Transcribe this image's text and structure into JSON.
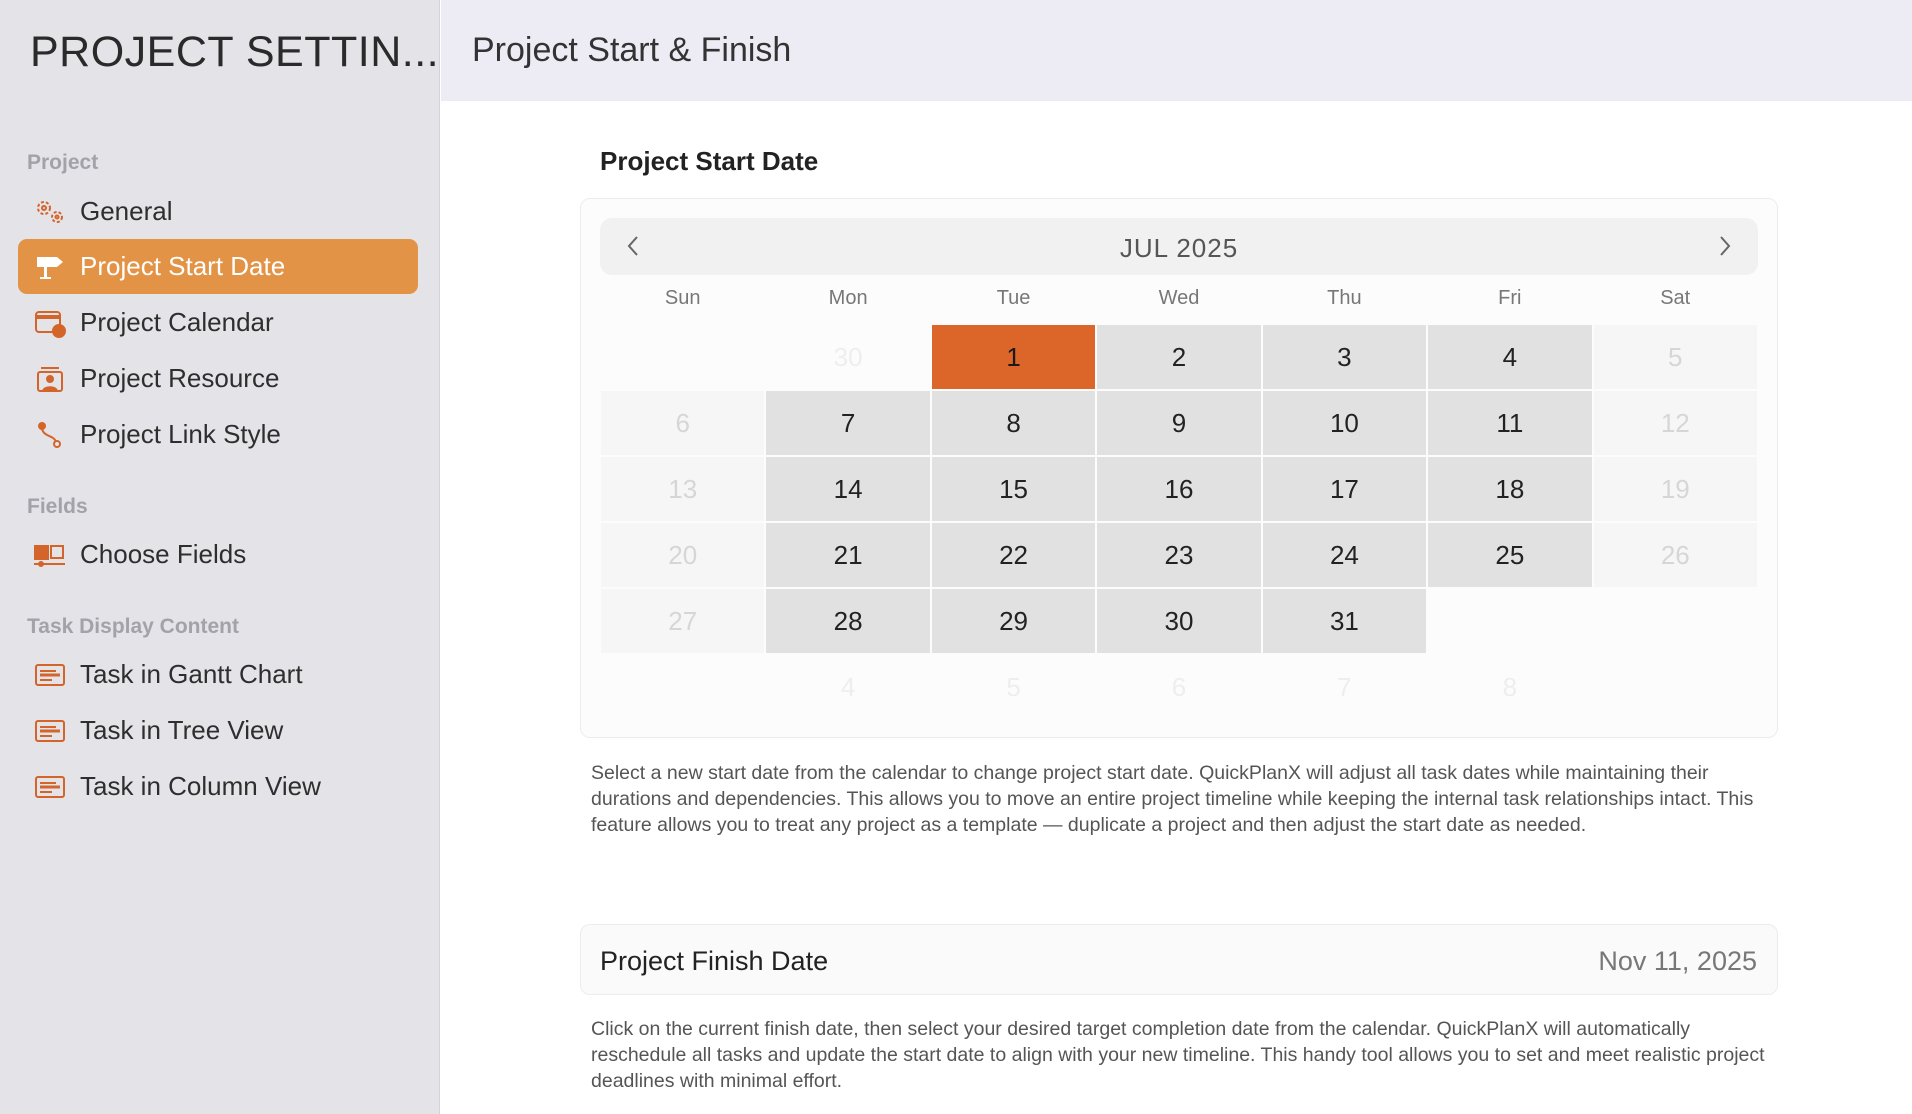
{
  "sidebar": {
    "title": "PROJECT SETTIN...",
    "sections": {
      "project": "Project",
      "fields": "Fields",
      "task_display": "Task Display Content"
    },
    "items": [
      {
        "label": "General",
        "icon": "gears-icon"
      },
      {
        "label": "Project Start Date",
        "icon": "signpost-icon",
        "active": true
      },
      {
        "label": "Project Calendar",
        "icon": "calendar-clock-icon"
      },
      {
        "label": "Project Resource",
        "icon": "resource-person-icon"
      },
      {
        "label": "Project Link Style",
        "icon": "link-path-icon"
      },
      {
        "label": "Choose Fields",
        "icon": "fields-icon"
      },
      {
        "label": "Task in Gantt Chart",
        "icon": "task-card-icon"
      },
      {
        "label": "Task in Tree View",
        "icon": "task-card-icon"
      },
      {
        "label": "Task in Column View",
        "icon": "task-card-icon"
      }
    ]
  },
  "header": {
    "title": "Project Start & Finish"
  },
  "start": {
    "heading": "Project Start Date",
    "calendar": {
      "month": "JUL 2025",
      "weekdays": [
        "Sun",
        "Mon",
        "Tue",
        "Wed",
        "Thu",
        "Fri",
        "Sat"
      ],
      "selected": "1",
      "weeks": [
        [
          [
            "",
            "outside"
          ],
          [
            "30",
            "outside"
          ],
          [
            "1",
            "selected"
          ],
          [
            "2",
            "weekday"
          ],
          [
            "3",
            "weekday"
          ],
          [
            "4",
            "weekday"
          ],
          [
            "5",
            "weekend"
          ]
        ],
        [
          [
            "6",
            "weekend"
          ],
          [
            "7",
            "weekday"
          ],
          [
            "8",
            "weekday"
          ],
          [
            "9",
            "weekday"
          ],
          [
            "10",
            "weekday"
          ],
          [
            "11",
            "weekday"
          ],
          [
            "12",
            "weekend"
          ]
        ],
        [
          [
            "13",
            "weekend"
          ],
          [
            "14",
            "weekday"
          ],
          [
            "15",
            "weekday"
          ],
          [
            "16",
            "weekday"
          ],
          [
            "17",
            "weekday"
          ],
          [
            "18",
            "weekday"
          ],
          [
            "19",
            "weekend"
          ]
        ],
        [
          [
            "20",
            "weekend"
          ],
          [
            "21",
            "weekday"
          ],
          [
            "22",
            "weekday"
          ],
          [
            "23",
            "weekday"
          ],
          [
            "24",
            "weekday"
          ],
          [
            "25",
            "weekday"
          ],
          [
            "26",
            "weekend"
          ]
        ],
        [
          [
            "27",
            "weekend"
          ],
          [
            "28",
            "weekday"
          ],
          [
            "29",
            "weekday"
          ],
          [
            "30",
            "weekday"
          ],
          [
            "31",
            "weekday"
          ],
          [
            "",
            "outside"
          ],
          [
            "",
            "outside"
          ]
        ],
        [
          [
            "",
            "outside"
          ],
          [
            "4",
            "outside"
          ],
          [
            "5",
            "outside"
          ],
          [
            "6",
            "outside"
          ],
          [
            "7",
            "outside"
          ],
          [
            "8",
            "outside"
          ],
          [
            "",
            "outside"
          ]
        ]
      ]
    },
    "description": "Select a new start date from the calendar to change project start date. QuickPlanX will adjust all task dates while maintaining their durations and dependencies. This allows you to move an entire project timeline while keeping the internal task relationships intact. This feature allows you to treat any project as a template — duplicate a project and then adjust the start date as needed."
  },
  "finish": {
    "label": "Project Finish Date",
    "value": "Nov 11, 2025",
    "description": "Click on the current finish date, then select your desired target completion date from the calendar. QuickPlanX will automatically reschedule all tasks and update the start date to align with your new timeline. This handy tool allows you to set and meet realistic project deadlines with minimal effort."
  },
  "colors": {
    "accent": "#e29345",
    "selected_day": "#dc652a",
    "icon": "#d4652a"
  }
}
